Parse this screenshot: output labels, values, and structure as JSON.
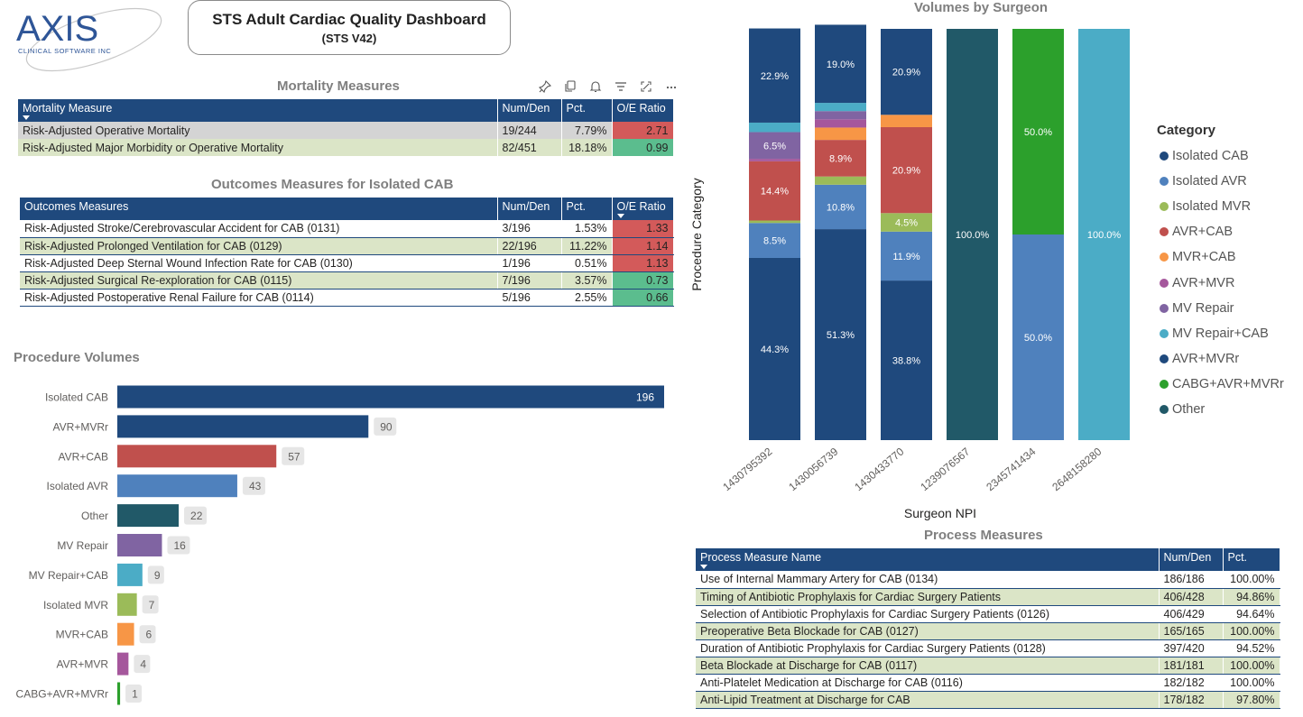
{
  "logo": {
    "brand": "AXIS",
    "sub": "CLINICAL SOFTWARE INC"
  },
  "title": {
    "line1": "STS Adult Cardiac Quality Dashboard",
    "line2": "(STS V42)"
  },
  "visual_header_icons": [
    "pin-icon",
    "copy-icon",
    "bell-icon",
    "filter-icon",
    "expand-icon",
    "more-icon"
  ],
  "mortality": {
    "title": "Mortality Measures",
    "headers": [
      "Mortality Measure",
      "Num/Den",
      "Pct.",
      "O/E Ratio"
    ],
    "rows": [
      {
        "name": "Risk-Adjusted Operative Mortality",
        "numden": "19/244",
        "pct": "7.79%",
        "oe": "2.71",
        "status": "bad"
      },
      {
        "name": "Risk-Adjusted Major Morbidity or Operative Mortality",
        "numden": "82/451",
        "pct": "18.18%",
        "oe": "0.99",
        "status": "good"
      }
    ]
  },
  "outcomes": {
    "title": "Outcomes Measures for Isolated CAB",
    "headers": [
      "Outcomes Measures",
      "Num/Den",
      "Pct.",
      "O/E Ratio"
    ],
    "rows": [
      {
        "name": "Risk-Adjusted Stroke/Cerebrovascular Accident for CAB (0131)",
        "numden": "3/196",
        "pct": "1.53%",
        "oe": "1.33",
        "status": "bad"
      },
      {
        "name": "Risk-Adjusted Prolonged Ventilation for CAB (0129)",
        "numden": "22/196",
        "pct": "11.22%",
        "oe": "1.14",
        "status": "bad"
      },
      {
        "name": "Risk-Adjusted Deep Sternal Wound Infection Rate for CAB (0130)",
        "numden": "1/196",
        "pct": "0.51%",
        "oe": "1.13",
        "status": "bad"
      },
      {
        "name": "Risk-Adjusted Surgical Re-exploration for CAB (0115)",
        "numden": "7/196",
        "pct": "3.57%",
        "oe": "0.73",
        "status": "good"
      },
      {
        "name": "Risk-Adjusted Postoperative Renal Failure for CAB (0114)",
        "numden": "5/196",
        "pct": "2.55%",
        "oe": "0.66",
        "status": "good"
      }
    ]
  },
  "process": {
    "title": "Process Measures",
    "headers": [
      "Process Measure Name",
      "Num/Den",
      "Pct."
    ],
    "rows": [
      {
        "name": "Use of Internal Mammary Artery for CAB (0134)",
        "numden": "186/186",
        "pct": "100.00%"
      },
      {
        "name": "Timing of Antibiotic Prophylaxis for Cardiac Surgery Patients",
        "numden": "406/428",
        "pct": "94.86%"
      },
      {
        "name": "Selection of Antibiotic Prophylaxis for Cardiac Surgery Patients (0126)",
        "numden": "406/429",
        "pct": "94.64%"
      },
      {
        "name": "Preoperative Beta Blockade for CAB (0127)",
        "numden": "165/165",
        "pct": "100.00%"
      },
      {
        "name": "Duration of Antibiotic Prophylaxis for Cardiac Surgery Patients (0128)",
        "numden": "397/420",
        "pct": "94.52%"
      },
      {
        "name": "Beta Blockade at Discharge for CAB (0117)",
        "numden": "181/181",
        "pct": "100.00%"
      },
      {
        "name": "Anti-Platelet Medication at Discharge for CAB (0116)",
        "numden": "182/182",
        "pct": "100.00%"
      },
      {
        "name": "Anti-Lipid Treatment at Discharge for CAB",
        "numden": "178/182",
        "pct": "97.80%"
      }
    ]
  },
  "colors": {
    "Isolated CAB": "#1f497d",
    "Isolated AVR": "#4f81bd",
    "Isolated MVR": "#9bbb59",
    "AVR+CAB": "#c0504d",
    "MVR+CAB": "#f79646",
    "AVR+MVR": "#a5579c",
    "MV Repair": "#8064a2",
    "MV Repair+CAB": "#4bacc6",
    "AVR+MVRr": "#1f497d",
    "CABG+AVR+MVRr": "#2ca02c",
    "Other": "#215968"
  },
  "chart_data": [
    {
      "type": "bar",
      "orientation": "horizontal",
      "title": "Procedure Volumes",
      "categories": [
        "Isolated CAB",
        "AVR+MVRr",
        "AVR+CAB",
        "Isolated AVR",
        "Other",
        "MV Repair",
        "MV Repair+CAB",
        "Isolated MVR",
        "MVR+CAB",
        "AVR+MVR",
        "CABG+AVR+MVRr"
      ],
      "values": [
        196,
        90,
        57,
        43,
        22,
        16,
        9,
        7,
        6,
        4,
        1
      ],
      "labels": [
        "196",
        "90",
        "57",
        "43",
        "22",
        "16",
        "9",
        "7",
        "6",
        "4",
        "1"
      ],
      "xlim": [
        0,
        196
      ]
    },
    {
      "type": "bar",
      "stacked": true,
      "percent": true,
      "title": "Volumes by Surgeon",
      "xlabel": "Surgeon NPI",
      "ylabel": "Procedure Category",
      "categories": [
        "1430795392",
        "1430056739",
        "1430433770",
        "1239076567",
        "2345741434",
        "2648158280"
      ],
      "ylim": [
        0,
        100
      ],
      "legend": {
        "title": "Category",
        "position": "right",
        "entries": [
          "Isolated CAB",
          "Isolated AVR",
          "Isolated MVR",
          "AVR+CAB",
          "MVR+CAB",
          "AVR+MVR",
          "MV Repair",
          "MV Repair+CAB",
          "AVR+MVRr",
          "CABG+AVR+MVRr",
          "Other"
        ]
      },
      "series": [
        {
          "name": "Isolated CAB",
          "values": [
            44.3,
            51.3,
            38.8,
            0,
            0,
            0
          ]
        },
        {
          "name": "Isolated AVR",
          "values": [
            8.5,
            10.8,
            11.9,
            0,
            50.0,
            0
          ]
        },
        {
          "name": "Isolated MVR",
          "values": [
            0.6,
            2.0,
            4.5,
            0,
            0,
            0
          ]
        },
        {
          "name": "AVR+CAB",
          "values": [
            14.4,
            8.9,
            20.9,
            0,
            0,
            0
          ]
        },
        {
          "name": "MVR+CAB",
          "values": [
            0,
            3.0,
            3.0,
            0,
            0,
            0
          ]
        },
        {
          "name": "AVR+MVR",
          "values": [
            0.6,
            2.0,
            0,
            0,
            0,
            0
          ]
        },
        {
          "name": "MV Repair",
          "values": [
            6.5,
            2.0,
            0,
            0,
            0,
            0
          ]
        },
        {
          "name": "MV Repair+CAB",
          "values": [
            2.3,
            2.0,
            0,
            0,
            0,
            100.0
          ]
        },
        {
          "name": "AVR+MVRr",
          "values": [
            22.9,
            19.0,
            20.9,
            0,
            0,
            0
          ]
        },
        {
          "name": "CABG+AVR+MVRr",
          "values": [
            0,
            0,
            0,
            0,
            50.0,
            0
          ]
        },
        {
          "name": "Other",
          "values": [
            0,
            0,
            0,
            100.0,
            0,
            0
          ]
        }
      ]
    }
  ]
}
